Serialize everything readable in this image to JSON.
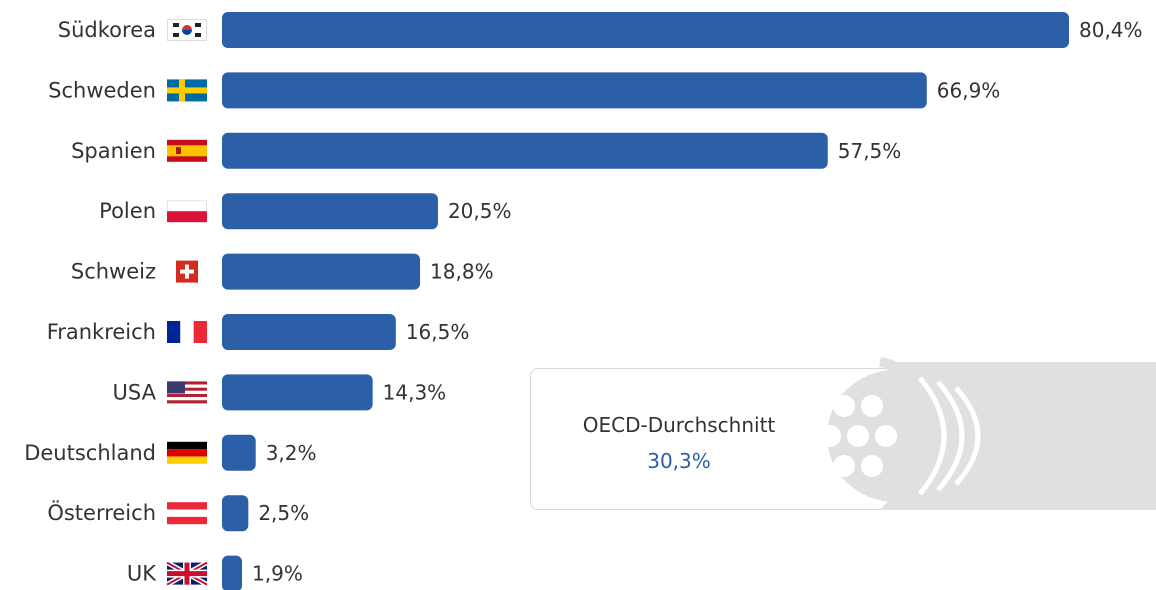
{
  "chart_data": {
    "type": "bar",
    "orientation": "horizontal",
    "categories": [
      "Südkorea",
      "Schweden",
      "Spanien",
      "Polen",
      "Schweiz",
      "Frankreich",
      "USA",
      "Deutschland",
      "Österreich",
      "UK"
    ],
    "values": [
      80.4,
      66.9,
      57.5,
      20.5,
      18.8,
      16.5,
      14.3,
      3.2,
      2.5,
      1.9
    ],
    "value_labels": [
      "80,4%",
      "66,9%",
      "57,5%",
      "20,5%",
      "18,8%",
      "16,5%",
      "14,3%",
      "3,2%",
      "2,5%",
      "1,9%"
    ],
    "flag_icons": [
      "south-korea-flag-icon",
      "sweden-flag-icon",
      "spain-flag-icon",
      "poland-flag-icon",
      "switzerland-flag-icon",
      "france-flag-icon",
      "usa-flag-icon",
      "germany-flag-icon",
      "austria-flag-icon",
      "uk-flag-icon"
    ],
    "bar_color": "#2b5fa8",
    "xlim": [
      0,
      80.4
    ],
    "grid": false,
    "title": "",
    "xlabel": "",
    "ylabel": ""
  },
  "oecd": {
    "title": "OECD-Durchschnitt",
    "value": "30,3%",
    "value_color": "#2b5fa8",
    "icon": "fiber-cable-icon"
  }
}
